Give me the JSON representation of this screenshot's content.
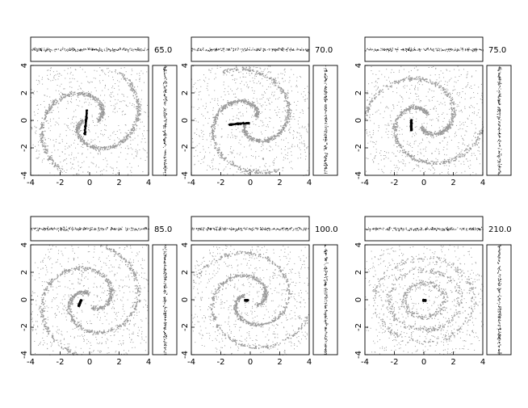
{
  "chart_data": {
    "type": "scatter",
    "description_panels": "six N-body snapshot panels, each with face-on view and two edge-on projections",
    "xlim": [
      -4,
      4
    ],
    "ylim": [
      -4,
      4
    ],
    "xticks": [
      "-4",
      "-2",
      "0",
      "2",
      "4"
    ],
    "yticks": [
      "-4",
      "-2",
      "0",
      "2",
      "4"
    ],
    "colors": {
      "disk": "#9a9a9a",
      "bar": "#000000",
      "frame": "#000000"
    },
    "panels": [
      {
        "label": "65.0",
        "morphology": "spiral",
        "bar_angle_deg": 85,
        "bar_length": 0.9,
        "bar_center": [
          -0.3,
          -0.1
        ],
        "arm_winding": 1.0
      },
      {
        "label": "70.0",
        "morphology": "spiral",
        "bar_angle_deg": 5,
        "bar_length": 0.7,
        "bar_center": [
          -0.8,
          -0.2
        ],
        "arm_winding": 1.1
      },
      {
        "label": "75.0",
        "morphology": "spiral",
        "bar_angle_deg": 90,
        "bar_length": 0.4,
        "bar_center": [
          -0.9,
          -0.3
        ],
        "arm_winding": 1.2
      },
      {
        "label": "85.0",
        "morphology": "spiral",
        "bar_angle_deg": 70,
        "bar_length": 0.25,
        "bar_center": [
          -0.7,
          -0.2
        ],
        "arm_winding": 1.4
      },
      {
        "label": "100.0",
        "morphology": "spiral",
        "bar_angle_deg": 0,
        "bar_length": 0.12,
        "bar_center": [
          -0.3,
          0.0
        ],
        "arm_winding": 1.6
      },
      {
        "label": "210.0",
        "morphology": "rings",
        "bar_angle_deg": 0,
        "bar_length": 0.1,
        "bar_center": [
          0.0,
          0.0
        ],
        "arm_winding": 2.0
      }
    ]
  }
}
